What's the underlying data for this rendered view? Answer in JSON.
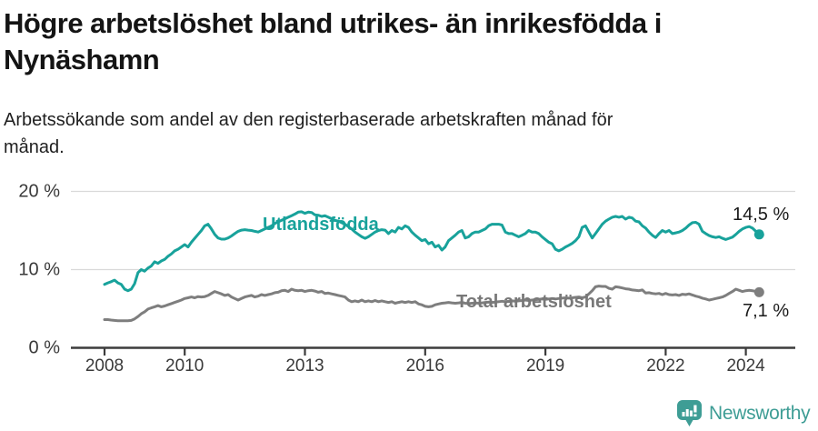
{
  "header": {
    "title": "Högre arbetslöshet bland utrikes- än inrikesfödda i Nynäshamn",
    "title_lines": [
      "Högre arbetslöshet bland utrikes- än inrikesfödda i",
      "Nynäshamn"
    ],
    "subtitle": "Arbetssökande som andel av den registerbaserade arbetskraften månad för månad.",
    "subtitle_lines": [
      "Arbetssökande som andel av den registerbaserade arbetskraften månad för",
      "månad."
    ]
  },
  "chart_data": {
    "type": "line",
    "title": "Högre arbetslöshet bland utrikes- än inrikesfödda i Nynäshamn",
    "xlabel": "",
    "ylabel": "Arbetssökande som andel av den registerbaserade arbetskraften",
    "unit": "%",
    "x_start": "2008-01",
    "x_end": "2024-05",
    "points_per_year": 12,
    "grid": "horizontal",
    "legend_position": "inline-labels",
    "ylim": [
      0,
      21
    ],
    "y_ticks": [
      {
        "label": "20 %",
        "value": 20
      },
      {
        "label": "10 %",
        "value": 10
      },
      {
        "label": "0 %",
        "value": 0
      }
    ],
    "x_ticks": [
      {
        "label": "2008",
        "year": 2008
      },
      {
        "label": "2010",
        "year": 2010
      },
      {
        "label": "2013",
        "year": 2013
      },
      {
        "label": "2016",
        "year": 2016
      },
      {
        "label": "2019",
        "year": 2019
      },
      {
        "label": "2022",
        "year": 2022
      },
      {
        "label": "2024",
        "year": 2024
      }
    ],
    "series": [
      {
        "name": "Utlandsfödda",
        "color": "#18a29b",
        "end_label": "14,5 %",
        "last_value": 14.5,
        "values": [
          8.1,
          8.3,
          8.45,
          8.65,
          8.3,
          8.1,
          7.5,
          7.3,
          7.5,
          8.2,
          9.6,
          10.0,
          9.8,
          10.2,
          10.45,
          11.0,
          10.8,
          11.1,
          11.3,
          11.7,
          12.0,
          12.4,
          12.6,
          12.9,
          13.2,
          12.9,
          13.5,
          14.0,
          14.5,
          15.0,
          15.6,
          15.8,
          15.2,
          14.5,
          14.05,
          13.9,
          13.9,
          14.05,
          14.3,
          14.6,
          14.9,
          15.05,
          15.1,
          15.05,
          15.0,
          14.9,
          14.8,
          15.0,
          15.2,
          15.4,
          15.6,
          15.9,
          16.1,
          16.3,
          16.5,
          16.7,
          16.9,
          17.1,
          17.35,
          17.4,
          17.2,
          17.35,
          17.3,
          17.0,
          16.95,
          16.8,
          16.9,
          16.7,
          16.5,
          16.3,
          16.2,
          16.0,
          15.8,
          15.5,
          15.2,
          14.8,
          14.5,
          14.2,
          14.0,
          14.2,
          14.5,
          14.8,
          15.0,
          15.1,
          15.05,
          14.6,
          15.0,
          14.8,
          15.4,
          15.2,
          15.6,
          15.4,
          14.8,
          14.4,
          14.05,
          13.7,
          13.85,
          13.3,
          13.5,
          12.9,
          13.1,
          12.5,
          12.9,
          13.7,
          14.05,
          14.4,
          14.8,
          15.0,
          14.05,
          14.2,
          14.6,
          14.8,
          14.8,
          15.0,
          15.2,
          15.6,
          15.8,
          15.8,
          15.8,
          15.7,
          14.8,
          14.6,
          14.6,
          14.4,
          14.2,
          14.4,
          14.6,
          15.0,
          14.8,
          14.8,
          14.6,
          14.2,
          13.85,
          13.5,
          13.3,
          12.6,
          12.4,
          12.6,
          12.9,
          13.1,
          13.35,
          13.7,
          14.2,
          15.4,
          15.6,
          14.8,
          14.05,
          14.6,
          15.2,
          15.8,
          16.2,
          16.45,
          16.7,
          16.8,
          16.7,
          16.8,
          16.45,
          16.7,
          16.6,
          16.2,
          16.1,
          15.6,
          15.3,
          14.8,
          14.4,
          14.1,
          14.6,
          15.0,
          14.8,
          15.0,
          14.6,
          14.7,
          14.8,
          15.0,
          15.3,
          15.7,
          16.0,
          16.05,
          15.8,
          14.9,
          14.6,
          14.35,
          14.2,
          14.1,
          14.2,
          14.0,
          13.85,
          14.0,
          14.15,
          14.5,
          14.9,
          15.2,
          15.4,
          15.5,
          15.3,
          14.9,
          14.5
        ]
      },
      {
        "name": "Total arbetslöshet",
        "color": "#7e7e7e",
        "end_label": "7,1 %",
        "last_value": 7.1,
        "values": [
          3.6,
          3.6,
          3.55,
          3.5,
          3.45,
          3.45,
          3.45,
          3.45,
          3.5,
          3.7,
          4.0,
          4.35,
          4.6,
          4.95,
          5.1,
          5.25,
          5.4,
          5.25,
          5.35,
          5.5,
          5.65,
          5.8,
          5.95,
          6.1,
          6.3,
          6.4,
          6.5,
          6.4,
          6.55,
          6.5,
          6.55,
          6.7,
          6.95,
          7.2,
          7.05,
          6.9,
          6.7,
          6.8,
          6.5,
          6.3,
          6.1,
          6.3,
          6.5,
          6.6,
          6.7,
          6.5,
          6.6,
          6.8,
          6.7,
          6.8,
          6.9,
          7.05,
          7.1,
          7.3,
          7.35,
          7.2,
          7.5,
          7.35,
          7.3,
          7.35,
          7.2,
          7.3,
          7.35,
          7.25,
          7.1,
          7.2,
          6.95,
          7.0,
          6.9,
          6.8,
          6.7,
          6.6,
          6.5,
          6.1,
          5.9,
          6.0,
          5.9,
          6.1,
          5.9,
          6.0,
          5.9,
          6.05,
          5.9,
          6.0,
          5.9,
          5.8,
          5.9,
          5.7,
          5.8,
          5.9,
          5.8,
          5.9,
          5.8,
          5.9,
          5.6,
          5.5,
          5.3,
          5.25,
          5.3,
          5.5,
          5.6,
          5.7,
          5.75,
          5.8,
          5.75,
          5.7,
          5.75,
          5.8,
          5.7,
          5.65,
          5.7,
          5.75,
          5.7,
          5.75,
          5.8,
          5.85,
          5.8,
          5.85,
          5.9,
          5.95,
          5.9,
          5.95,
          6.0,
          5.95,
          6.0,
          6.05,
          6.1,
          6.05,
          6.1,
          6.15,
          6.2,
          6.25,
          6.2,
          6.25,
          6.3,
          6.25,
          6.3,
          6.35,
          6.4,
          6.35,
          6.4,
          6.45,
          6.5,
          6.4,
          6.5,
          6.9,
          7.3,
          7.8,
          7.9,
          7.85,
          7.85,
          7.6,
          7.5,
          7.8,
          7.75,
          7.65,
          7.55,
          7.5,
          7.4,
          7.35,
          7.3,
          7.4,
          7.0,
          7.05,
          6.95,
          6.9,
          6.95,
          6.8,
          6.95,
          6.8,
          6.75,
          6.8,
          6.7,
          6.85,
          6.8,
          6.9,
          6.75,
          6.6,
          6.5,
          6.35,
          6.25,
          6.1,
          6.2,
          6.3,
          6.4,
          6.5,
          6.7,
          6.95,
          7.2,
          7.5,
          7.35,
          7.2,
          7.3,
          7.35,
          7.3,
          7.2,
          7.1
        ]
      }
    ]
  },
  "logo": {
    "text": "Newsworthy",
    "icon": "bar-chart-speech-bubble-icon",
    "color": "#3e9d95"
  },
  "style_colors": {
    "accent_teal": "#18a29b",
    "line_gray": "#7e7e7e",
    "grid": "#d9d9d9",
    "axis": "#3c3c3c",
    "text": "#1a1a1a"
  }
}
